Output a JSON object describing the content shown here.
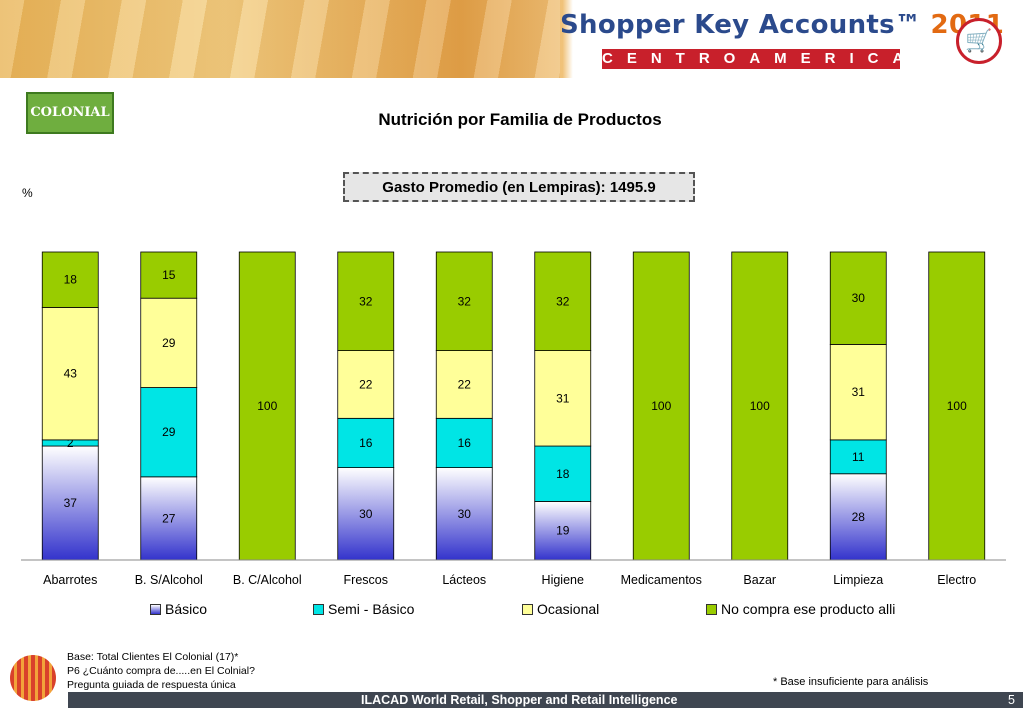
{
  "header": {
    "brand": "Shopper Key Accounts™",
    "year": "2011",
    "region": "CENTROAMERICA",
    "client_logo": "COLONIAL",
    "cart_icon": "shopping-cart-icon"
  },
  "title": "Nutrición por Familia de Productos",
  "gasto": "Gasto Promedio (en Lempiras): 1495.9",
  "unit_label": "%",
  "colors": {
    "basico": "#3333cc",
    "semi": "#00e5e5",
    "ocasional": "#ffff99",
    "no_compra": "#99cc00"
  },
  "chart_data": {
    "type": "bar",
    "stacked": true,
    "categories": [
      "Abarrotes",
      "B. S/Alcohol",
      "B. C/Alcohol",
      "Frescos",
      "Lácteos",
      "Higiene",
      "Medicamentos",
      "Bazar",
      "Limpieza",
      "Electro"
    ],
    "series": [
      {
        "name": "Básico",
        "values": [
          37,
          27,
          0,
          30,
          30,
          19,
          0,
          0,
          28,
          0
        ]
      },
      {
        "name": "Semi - Básico",
        "values": [
          2,
          29,
          0,
          16,
          16,
          18,
          0,
          0,
          11,
          0
        ]
      },
      {
        "name": "Ocasional",
        "values": [
          43,
          29,
          0,
          22,
          22,
          31,
          0,
          0,
          31,
          0
        ]
      },
      {
        "name": "No compra ese producto alli",
        "values": [
          18,
          15,
          100,
          32,
          32,
          32,
          100,
          100,
          30,
          100
        ]
      }
    ],
    "ylim": [
      0,
      100
    ],
    "legend_position": "bottom",
    "grid": false
  },
  "notes": {
    "line1": "Base: Total Clientes El Colonial (17)*",
    "line2": "P6 ¿Cuánto compra de.....en El Colnial?",
    "line3": "Pregunta guiada de respuesta única",
    "insufficient": "* Base insuficiente para análisis"
  },
  "footer": {
    "text": "ILACAD World Retail, Shopper and Retail Intelligence",
    "page": "5"
  }
}
